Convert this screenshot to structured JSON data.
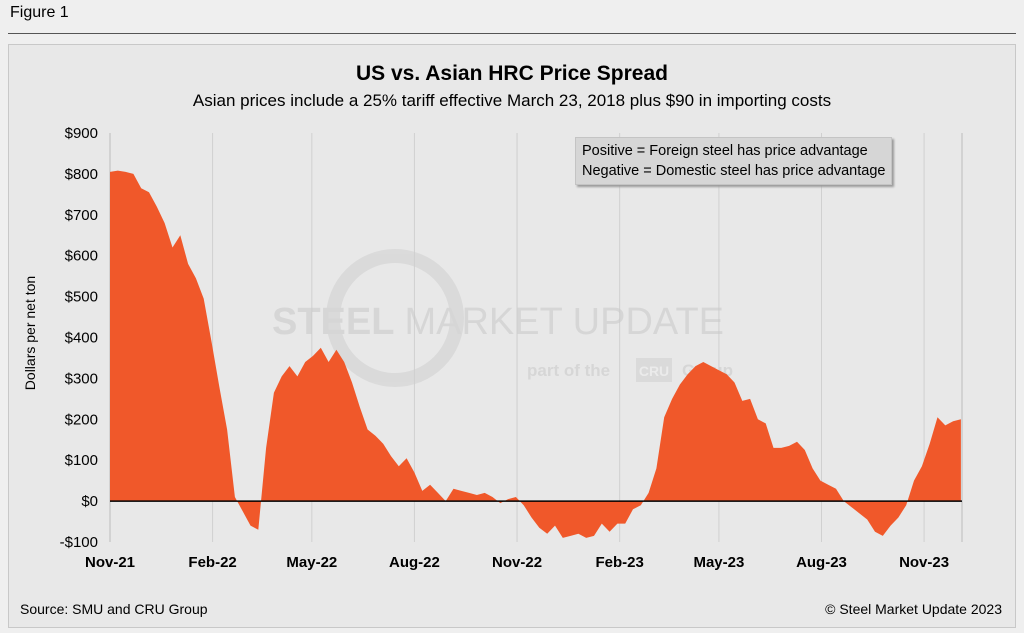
{
  "figure_label": "Figure 1",
  "source_text": "Source: SMU and CRU Group",
  "copyright_text": "© Steel Market Update 2023",
  "watermark": {
    "line1_bold": "STEEL",
    "line1_rest": "MARKET UPDATE",
    "line2": "part of the",
    "logo": "CRU",
    "line2_end": "Group"
  },
  "colors": {
    "area": "#f0582a",
    "zero_line": "#000000",
    "grid": "#d0d0d0"
  },
  "chart_data": {
    "type": "area",
    "title": "US vs. Asian HRC Price Spread",
    "subtitle": "Asian prices include a 25% tariff effective March 23, 2018 plus $90 in importing costs",
    "ylabel": "Dollars per net ton",
    "xlabel": "",
    "ylim": [
      -100,
      900
    ],
    "yticks": [
      -100,
      0,
      100,
      200,
      300,
      400,
      500,
      600,
      700,
      800,
      900
    ],
    "ytick_labels": [
      "-$100",
      "$0",
      "$100",
      "$200",
      "$300",
      "$400",
      "$500",
      "$600",
      "$700",
      "$800",
      "$900"
    ],
    "xtick_labels": [
      "Nov-21",
      "Feb-22",
      "May-22",
      "Aug-22",
      "Nov-22",
      "Feb-23",
      "May-23",
      "Aug-23",
      "Nov-23"
    ],
    "grid": true,
    "legend": "none",
    "annotation_lines": [
      "Positive = Foreign steel has price advantage",
      "Negative = Domestic steel has price advantage"
    ],
    "x_start": "2021-11-01",
    "x_end": "2023-12-05",
    "points": [
      [
        "2021-11-01",
        805
      ],
      [
        "2021-11-08",
        808
      ],
      [
        "2021-11-15",
        805
      ],
      [
        "2021-11-22",
        800
      ],
      [
        "2021-11-29",
        765
      ],
      [
        "2021-12-06",
        755
      ],
      [
        "2021-12-13",
        720
      ],
      [
        "2021-12-20",
        680
      ],
      [
        "2021-12-27",
        620
      ],
      [
        "2022-01-03",
        650
      ],
      [
        "2022-01-10",
        580
      ],
      [
        "2022-01-17",
        545
      ],
      [
        "2022-01-24",
        495
      ],
      [
        "2022-01-31",
        390
      ],
      [
        "2022-02-07",
        280
      ],
      [
        "2022-02-14",
        175
      ],
      [
        "2022-02-21",
        10
      ],
      [
        "2022-02-28",
        -25
      ],
      [
        "2022-03-07",
        -60
      ],
      [
        "2022-03-14",
        -70
      ],
      [
        "2022-03-21",
        130
      ],
      [
        "2022-03-28",
        265
      ],
      [
        "2022-04-04",
        305
      ],
      [
        "2022-04-11",
        330
      ],
      [
        "2022-04-18",
        305
      ],
      [
        "2022-04-25",
        340
      ],
      [
        "2022-05-02",
        355
      ],
      [
        "2022-05-09",
        375
      ],
      [
        "2022-05-16",
        340
      ],
      [
        "2022-05-23",
        370
      ],
      [
        "2022-05-30",
        340
      ],
      [
        "2022-06-06",
        290
      ],
      [
        "2022-06-13",
        230
      ],
      [
        "2022-06-20",
        175
      ],
      [
        "2022-06-27",
        160
      ],
      [
        "2022-07-04",
        140
      ],
      [
        "2022-07-11",
        110
      ],
      [
        "2022-07-18",
        85
      ],
      [
        "2022-07-25",
        105
      ],
      [
        "2022-08-01",
        70
      ],
      [
        "2022-08-08",
        25
      ],
      [
        "2022-08-15",
        40
      ],
      [
        "2022-08-22",
        20
      ],
      [
        "2022-08-29",
        0
      ],
      [
        "2022-09-05",
        30
      ],
      [
        "2022-09-12",
        25
      ],
      [
        "2022-09-19",
        20
      ],
      [
        "2022-09-26",
        15
      ],
      [
        "2022-10-03",
        20
      ],
      [
        "2022-10-10",
        10
      ],
      [
        "2022-10-17",
        -5
      ],
      [
        "2022-10-24",
        5
      ],
      [
        "2022-10-31",
        10
      ],
      [
        "2022-11-07",
        -10
      ],
      [
        "2022-11-14",
        -40
      ],
      [
        "2022-11-21",
        -65
      ],
      [
        "2022-11-28",
        -80
      ],
      [
        "2022-12-05",
        -60
      ],
      [
        "2022-12-12",
        -90
      ],
      [
        "2022-12-19",
        -85
      ],
      [
        "2022-12-26",
        -80
      ],
      [
        "2023-01-02",
        -90
      ],
      [
        "2023-01-09",
        -85
      ],
      [
        "2023-01-16",
        -55
      ],
      [
        "2023-01-23",
        -75
      ],
      [
        "2023-01-30",
        -55
      ],
      [
        "2023-02-06",
        -55
      ],
      [
        "2023-02-13",
        -20
      ],
      [
        "2023-02-20",
        -10
      ],
      [
        "2023-02-27",
        20
      ],
      [
        "2023-03-06",
        80
      ],
      [
        "2023-03-13",
        205
      ],
      [
        "2023-03-20",
        250
      ],
      [
        "2023-03-27",
        285
      ],
      [
        "2023-04-03",
        310
      ],
      [
        "2023-04-10",
        330
      ],
      [
        "2023-04-17",
        340
      ],
      [
        "2023-04-24",
        330
      ],
      [
        "2023-05-01",
        320
      ],
      [
        "2023-05-08",
        310
      ],
      [
        "2023-05-15",
        290
      ],
      [
        "2023-05-22",
        245
      ],
      [
        "2023-05-29",
        250
      ],
      [
        "2023-06-05",
        200
      ],
      [
        "2023-06-12",
        190
      ],
      [
        "2023-06-19",
        130
      ],
      [
        "2023-06-26",
        130
      ],
      [
        "2023-07-03",
        135
      ],
      [
        "2023-07-10",
        145
      ],
      [
        "2023-07-17",
        125
      ],
      [
        "2023-07-24",
        80
      ],
      [
        "2023-07-31",
        50
      ],
      [
        "2023-08-07",
        40
      ],
      [
        "2023-08-14",
        30
      ],
      [
        "2023-08-21",
        0
      ],
      [
        "2023-08-28",
        -15
      ],
      [
        "2023-09-04",
        -30
      ],
      [
        "2023-09-11",
        -45
      ],
      [
        "2023-09-18",
        -75
      ],
      [
        "2023-09-25",
        -85
      ],
      [
        "2023-10-02",
        -60
      ],
      [
        "2023-10-09",
        -40
      ],
      [
        "2023-10-16",
        -10
      ],
      [
        "2023-10-23",
        50
      ],
      [
        "2023-10-30",
        85
      ],
      [
        "2023-11-06",
        140
      ],
      [
        "2023-11-13",
        205
      ],
      [
        "2023-11-20",
        185
      ],
      [
        "2023-11-27",
        195
      ],
      [
        "2023-12-04",
        200
      ]
    ]
  }
}
